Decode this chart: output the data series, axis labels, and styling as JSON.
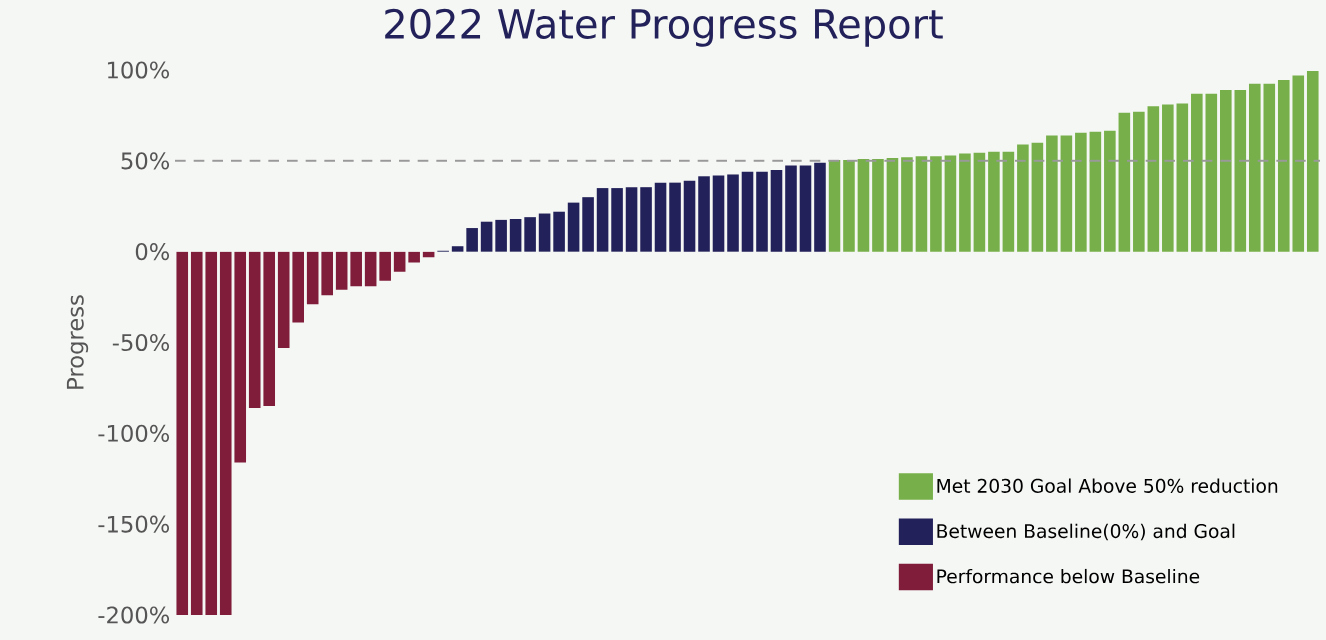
{
  "chart_data": {
    "type": "bar",
    "title": "2022 Water Progress Report",
    "ylabel": "Progress",
    "categories": [
      null,
      null,
      null,
      null,
      null,
      null,
      null,
      null,
      null,
      null,
      null,
      null,
      null,
      null,
      null,
      null,
      null,
      null,
      null,
      null,
      null,
      null,
      null,
      null,
      null,
      null,
      null,
      null,
      null,
      null,
      null,
      null,
      null,
      null,
      null,
      null,
      null,
      null,
      null,
      null,
      null,
      null,
      null,
      null,
      null,
      null,
      null,
      null,
      null,
      null,
      null,
      null,
      null,
      null,
      null,
      null,
      null,
      null,
      null,
      null,
      null,
      null,
      null,
      null,
      null,
      null,
      null,
      null,
      null,
      null,
      null,
      null,
      null,
      null,
      null,
      null,
      null,
      null,
      null
    ],
    "series": [
      {
        "name": "Met 2030 Goal Above 50% reduction",
        "color": "#77b04a",
        "values": [
          null,
          null,
          null,
          null,
          null,
          null,
          null,
          null,
          null,
          null,
          null,
          null,
          null,
          null,
          null,
          null,
          null,
          null,
          null,
          null,
          null,
          null,
          null,
          null,
          null,
          null,
          null,
          null,
          null,
          null,
          null,
          null,
          null,
          null,
          null,
          null,
          null,
          null,
          null,
          null,
          null,
          null,
          null,
          null,
          null,
          50.5,
          50.5,
          51,
          51,
          51.5,
          52,
          52.5,
          52.5,
          53,
          54,
          54.5,
          55,
          55,
          59,
          60,
          64,
          64,
          65.5,
          66,
          66.5,
          76.5,
          77,
          80,
          81,
          81.5,
          87,
          87,
          89,
          89,
          92.5,
          92.5,
          94.5,
          97,
          99.5
        ]
      },
      {
        "name": "Between Baseline(0%) and Goal",
        "color": "#23215a",
        "values": [
          null,
          null,
          null,
          null,
          null,
          null,
          null,
          null,
          null,
          null,
          null,
          null,
          null,
          null,
          null,
          null,
          null,
          null,
          0.5,
          3,
          13,
          16.5,
          17.5,
          18,
          19,
          21,
          22,
          27,
          30,
          35,
          35,
          35.5,
          35.5,
          38,
          38,
          39,
          41.5,
          42,
          42.5,
          44,
          44,
          45,
          47.5,
          47.5,
          49,
          null,
          null,
          null,
          null,
          null,
          null,
          null,
          null,
          null,
          null,
          null,
          null,
          null,
          null,
          null,
          null,
          null,
          null,
          null,
          null,
          null,
          null,
          null,
          null,
          null,
          null,
          null,
          null,
          null,
          null,
          null,
          null,
          null,
          null
        ]
      },
      {
        "name": "Performance below Baseline",
        "color": "#7f1d3a",
        "values": [
          -200,
          -200,
          -200,
          -200,
          -116,
          -86,
          -85,
          -53,
          -39,
          -29,
          -24,
          -21,
          -19,
          -19,
          -16,
          -11,
          -6,
          -3,
          null,
          null,
          null,
          null,
          null,
          null,
          null,
          null,
          null,
          null,
          null,
          null,
          null,
          null,
          null,
          null,
          null,
          null,
          null,
          null,
          null,
          null,
          null,
          null,
          null,
          null,
          null,
          null,
          null,
          null,
          null,
          null,
          null,
          null,
          null,
          null,
          null,
          null,
          null,
          null,
          null,
          null,
          null,
          null,
          null,
          null,
          null,
          null,
          null,
          null,
          null,
          null,
          null,
          null,
          null,
          null,
          null,
          null,
          null,
          null,
          null
        ]
      }
    ],
    "ylim": [
      -200,
      100
    ],
    "yticks": [
      {
        "value": 100,
        "label": "100%"
      },
      {
        "value": 50,
        "label": "50%"
      },
      {
        "value": 0,
        "label": "0%"
      },
      {
        "value": -50,
        "label": "-50%"
      },
      {
        "value": -100,
        "label": "-100%"
      },
      {
        "value": -150,
        "label": "-150%"
      },
      {
        "value": -200,
        "label": "-200%"
      }
    ],
    "ref_lines": [
      {
        "axis": "y",
        "value": 50,
        "color": "#999999",
        "line_style": "dashed"
      }
    ],
    "legend": "bottom right",
    "grid": false
  }
}
